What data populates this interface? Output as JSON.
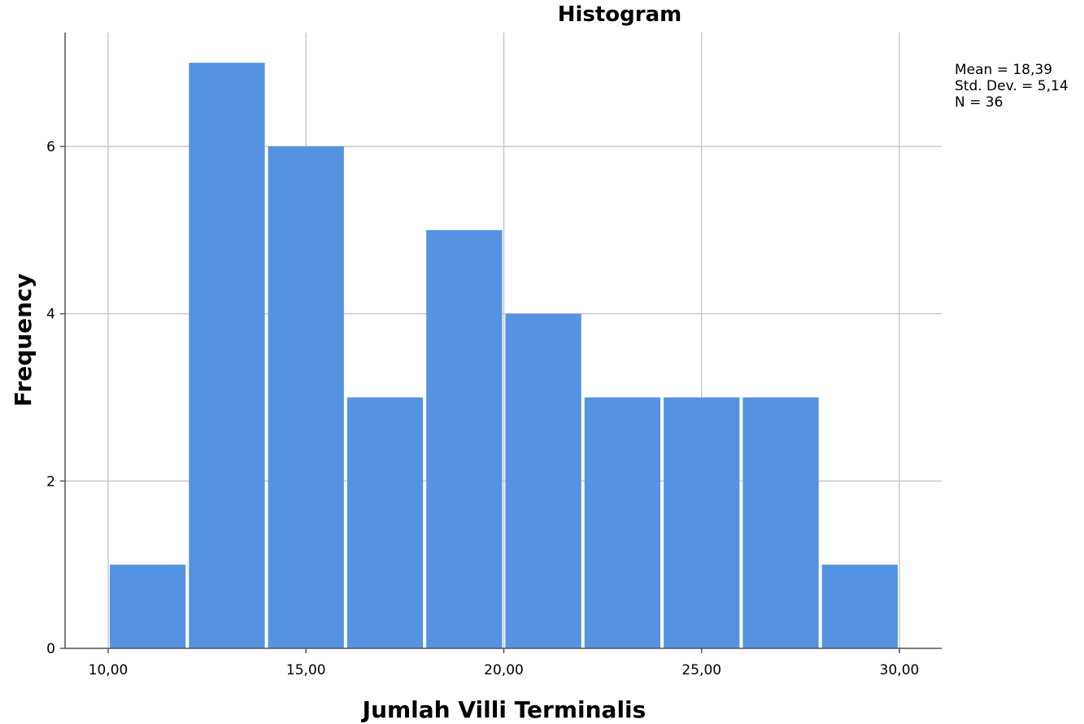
{
  "chart_data": {
    "type": "bar",
    "title": "Histogram",
    "xlabel": "Jumlah Villi Terminalis",
    "ylabel": "Frequency",
    "bins": [
      {
        "start": 10,
        "end": 12,
        "count": 1
      },
      {
        "start": 12,
        "end": 14,
        "count": 7
      },
      {
        "start": 14,
        "end": 16,
        "count": 6
      },
      {
        "start": 16,
        "end": 18,
        "count": 3
      },
      {
        "start": 18,
        "end": 20,
        "count": 5
      },
      {
        "start": 20,
        "end": 22,
        "count": 4
      },
      {
        "start": 22,
        "end": 24,
        "count": 3
      },
      {
        "start": 24,
        "end": 26,
        "count": 3
      },
      {
        "start": 26,
        "end": 28,
        "count": 3
      },
      {
        "start": 28,
        "end": 30,
        "count": 1
      }
    ],
    "xlim": [
      10,
      30
    ],
    "ylim": [
      0,
      7.5
    ],
    "xticks": [
      10,
      15,
      20,
      25,
      30
    ],
    "xtick_labels": [
      "10,00",
      "15,00",
      "20,00",
      "25,00",
      "30,00"
    ],
    "yticks": [
      0,
      2,
      4,
      6
    ],
    "ytick_labels": [
      "0",
      "2",
      "4",
      "6"
    ],
    "grid": true,
    "bar_color": "#5593e2",
    "statistics": [
      "Mean = 18,39",
      "Std. Dev. = 5,14",
      "N = 36"
    ]
  }
}
